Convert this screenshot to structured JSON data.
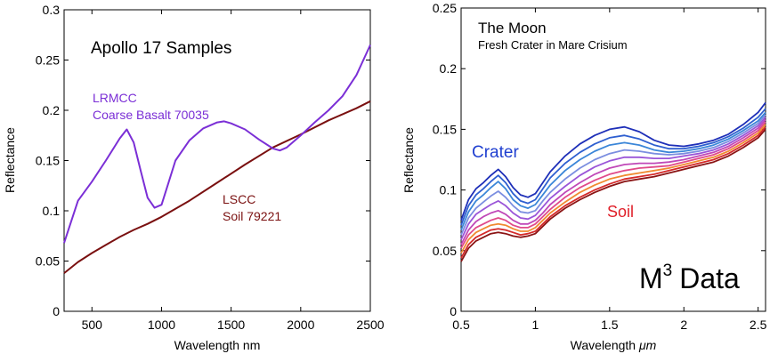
{
  "chart_data": [
    {
      "type": "line",
      "title": "Apollo 17 Samples",
      "xlabel": "Wavelength nm",
      "ylabel": "Reflectance",
      "xlim": [
        300,
        2500
      ],
      "ylim": [
        0,
        0.3
      ],
      "xticks": [
        "500",
        "1000",
        "1500",
        "2000",
        "2500"
      ],
      "xtick_values": [
        500,
        1000,
        1500,
        2000,
        2500
      ],
      "yticks": [
        "0",
        "0.05",
        "0.1",
        "0.15",
        "0.2",
        "0.25",
        "0.3"
      ],
      "ytick_values": [
        0,
        0.05,
        0.1,
        0.15,
        0.2,
        0.25,
        0.3
      ],
      "series": [
        {
          "name": "LRMCC Coarse Basalt 70035",
          "label_lines": [
            "LRMCC",
            "Coarse Basalt 70035"
          ],
          "color": "#7b2fd6",
          "x": [
            300,
            400,
            500,
            600,
            700,
            750,
            800,
            850,
            900,
            950,
            1000,
            1050,
            1100,
            1200,
            1300,
            1400,
            1450,
            1500,
            1600,
            1700,
            1800,
            1850,
            1900,
            2000,
            2100,
            2200,
            2300,
            2400,
            2500
          ],
          "y": [
            0.068,
            0.11,
            0.129,
            0.15,
            0.172,
            0.181,
            0.168,
            0.14,
            0.113,
            0.103,
            0.106,
            0.128,
            0.15,
            0.17,
            0.182,
            0.188,
            0.189,
            0.187,
            0.181,
            0.171,
            0.162,
            0.16,
            0.163,
            0.175,
            0.188,
            0.2,
            0.214,
            0.235,
            0.265
          ]
        },
        {
          "name": "LSCC Soil 79221",
          "label_lines": [
            "LSCC",
            "Soil 79221"
          ],
          "color": "#7a1010",
          "x": [
            300,
            400,
            500,
            600,
            700,
            800,
            900,
            1000,
            1200,
            1400,
            1600,
            1800,
            2000,
            2200,
            2400,
            2500
          ],
          "y": [
            0.038,
            0.049,
            0.058,
            0.066,
            0.074,
            0.081,
            0.087,
            0.094,
            0.11,
            0.128,
            0.146,
            0.163,
            0.176,
            0.19,
            0.202,
            0.209
          ]
        }
      ]
    },
    {
      "type": "line",
      "title": "The Moon",
      "subtitle": "Fresh Crater in Mare Crisium",
      "annotation": "M³ Data",
      "annotation_base": "M",
      "annotation_sup": "3",
      "annotation_rest": "Data",
      "xlabel": "Wavelength μm",
      "xlabel_text": "Wavelength ",
      "xlabel_unit": "μm",
      "ylabel": "Reflectance",
      "xlim": [
        0.5,
        2.55
      ],
      "ylim": [
        0,
        0.25
      ],
      "xticks": [
        "0.5",
        "1",
        "1.5",
        "2",
        "2.5"
      ],
      "xtick_values": [
        0.5,
        1,
        1.5,
        2,
        2.5
      ],
      "yticks": [
        "0",
        "0.05",
        "0.1",
        "0.15",
        "0.2",
        "0.25"
      ],
      "ytick_values": [
        0,
        0.05,
        0.1,
        0.15,
        0.2,
        0.25
      ],
      "labels": [
        {
          "text": "Crater",
          "color": "#1f3fd0"
        },
        {
          "text": "Soil",
          "color": "#e0202a"
        }
      ],
      "x": [
        0.5,
        0.55,
        0.6,
        0.65,
        0.7,
        0.75,
        0.8,
        0.85,
        0.9,
        0.95,
        1.0,
        1.05,
        1.1,
        1.2,
        1.3,
        1.4,
        1.5,
        1.6,
        1.7,
        1.8,
        1.9,
        2.0,
        2.1,
        2.2,
        2.3,
        2.4,
        2.5,
        2.55
      ],
      "series": [
        {
          "color": "#1e2fb8",
          "y": [
            0.075,
            0.092,
            0.101,
            0.106,
            0.112,
            0.117,
            0.111,
            0.102,
            0.096,
            0.094,
            0.097,
            0.106,
            0.115,
            0.128,
            0.138,
            0.145,
            0.15,
            0.152,
            0.148,
            0.141,
            0.137,
            0.136,
            0.138,
            0.141,
            0.146,
            0.154,
            0.164,
            0.172
          ]
        },
        {
          "color": "#2e5fd0",
          "y": [
            0.071,
            0.087,
            0.096,
            0.101,
            0.107,
            0.112,
            0.106,
            0.097,
            0.091,
            0.089,
            0.092,
            0.101,
            0.11,
            0.122,
            0.131,
            0.138,
            0.143,
            0.145,
            0.142,
            0.137,
            0.134,
            0.134,
            0.136,
            0.139,
            0.144,
            0.151,
            0.16,
            0.167
          ]
        },
        {
          "color": "#3b86d8",
          "y": [
            0.067,
            0.082,
            0.091,
            0.096,
            0.102,
            0.107,
            0.101,
            0.092,
            0.087,
            0.085,
            0.088,
            0.096,
            0.104,
            0.116,
            0.125,
            0.132,
            0.137,
            0.139,
            0.137,
            0.133,
            0.131,
            0.132,
            0.134,
            0.137,
            0.142,
            0.149,
            0.157,
            0.164
          ]
        },
        {
          "color": "#7b8ee0",
          "y": [
            0.063,
            0.077,
            0.085,
            0.09,
            0.095,
            0.099,
            0.094,
            0.087,
            0.082,
            0.081,
            0.083,
            0.091,
            0.098,
            0.109,
            0.118,
            0.125,
            0.13,
            0.133,
            0.132,
            0.13,
            0.129,
            0.13,
            0.132,
            0.135,
            0.14,
            0.147,
            0.155,
            0.162
          ]
        },
        {
          "color": "#9a55d8",
          "y": [
            0.059,
            0.072,
            0.08,
            0.084,
            0.088,
            0.091,
            0.087,
            0.081,
            0.077,
            0.076,
            0.079,
            0.086,
            0.093,
            0.103,
            0.112,
            0.119,
            0.124,
            0.127,
            0.127,
            0.126,
            0.126,
            0.128,
            0.13,
            0.133,
            0.138,
            0.145,
            0.153,
            0.16
          ]
        },
        {
          "color": "#c048b8",
          "y": [
            0.055,
            0.067,
            0.074,
            0.078,
            0.081,
            0.083,
            0.08,
            0.075,
            0.072,
            0.072,
            0.075,
            0.081,
            0.088,
            0.098,
            0.106,
            0.113,
            0.118,
            0.121,
            0.122,
            0.122,
            0.123,
            0.125,
            0.128,
            0.131,
            0.136,
            0.143,
            0.151,
            0.158
          ]
        },
        {
          "color": "#e04a8a",
          "y": [
            0.052,
            0.063,
            0.069,
            0.072,
            0.075,
            0.077,
            0.075,
            0.071,
            0.069,
            0.069,
            0.072,
            0.078,
            0.084,
            0.094,
            0.102,
            0.108,
            0.113,
            0.116,
            0.118,
            0.119,
            0.12,
            0.123,
            0.126,
            0.129,
            0.134,
            0.141,
            0.149,
            0.156
          ]
        },
        {
          "color": "#f08a30",
          "y": [
            0.048,
            0.059,
            0.065,
            0.068,
            0.071,
            0.072,
            0.071,
            0.068,
            0.066,
            0.066,
            0.069,
            0.075,
            0.081,
            0.09,
            0.098,
            0.104,
            0.109,
            0.112,
            0.114,
            0.116,
            0.118,
            0.121,
            0.124,
            0.127,
            0.132,
            0.139,
            0.147,
            0.154
          ]
        },
        {
          "color": "#d42a2a",
          "y": [
            0.044,
            0.055,
            0.061,
            0.064,
            0.067,
            0.068,
            0.067,
            0.065,
            0.063,
            0.064,
            0.066,
            0.072,
            0.078,
            0.087,
            0.094,
            0.1,
            0.105,
            0.109,
            0.111,
            0.113,
            0.116,
            0.119,
            0.122,
            0.125,
            0.13,
            0.137,
            0.145,
            0.152
          ]
        },
        {
          "color": "#8a1414",
          "y": [
            0.041,
            0.052,
            0.058,
            0.061,
            0.064,
            0.065,
            0.064,
            0.062,
            0.061,
            0.062,
            0.064,
            0.07,
            0.076,
            0.085,
            0.092,
            0.098,
            0.103,
            0.107,
            0.109,
            0.111,
            0.114,
            0.117,
            0.12,
            0.123,
            0.128,
            0.135,
            0.143,
            0.15
          ]
        }
      ]
    }
  ]
}
